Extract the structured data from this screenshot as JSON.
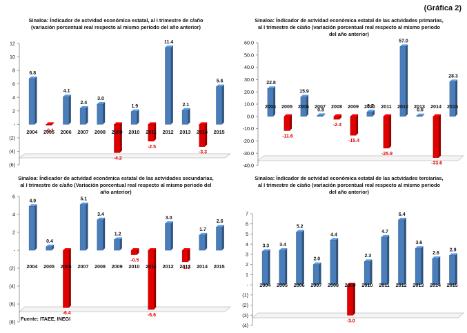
{
  "page_label": "(Gráfica 2)",
  "source": "Fuente: ITAEE,  INEGI",
  "colors": {
    "positive": "#4a7ebb",
    "negative": "#e00000",
    "axis": "#808080",
    "floor": "#bfbfbf"
  },
  "chart_data": [
    {
      "type": "bar",
      "title": [
        "Sinaloa: Índicador de actvidad  económica estatal, al I trimestre de c/año",
        "(variación  porcentual  real respecto al mismo periodo del año anterior)"
      ],
      "categories": [
        "2004",
        "2005",
        "2006",
        "2007",
        "2008",
        "2009",
        "2010",
        "2011",
        "2012",
        "2013",
        "2014",
        "2015"
      ],
      "values": [
        6.8,
        -0.1,
        4.1,
        2.4,
        3.0,
        -4.2,
        1.9,
        -2.5,
        11.4,
        2.1,
        -3.3,
        5.6
      ],
      "value_labels": [
        "6.8",
        "-0.1",
        "4.1",
        "2.4",
        "3.0",
        "-4.2",
        "1.9",
        "-2.5",
        "11.4",
        "2.1",
        "-3.3",
        "5.6"
      ],
      "ylim": [
        -6,
        12
      ],
      "y_ticks": [
        12,
        10,
        8,
        6,
        4,
        2,
        0,
        -2,
        -4,
        -6
      ],
      "y_tick_labels": [
        "12",
        "10",
        "8",
        "6",
        "4",
        "2",
        "-",
        "(2)",
        "(4)",
        "(6)"
      ],
      "xlabel": "",
      "ylabel": "",
      "grid": false
    },
    {
      "type": "bar",
      "title": [
        "Sinaloa: Índicador de actvidad  económica estatal de las actvidades primarias,",
        "al I trimestre de c/año (variación  porcentual  real respecto al mismo periodo",
        "del año anterior)"
      ],
      "categories": [
        "2004",
        "2005",
        "2006",
        "2007",
        "2008",
        "2009",
        "2010",
        "2011",
        "2012",
        "2013",
        "2014",
        "2015"
      ],
      "values": [
        22.8,
        -11.6,
        15.9,
        0.8,
        -2.4,
        -15.4,
        3.7,
        -25.9,
        57.0,
        0.6,
        -33.6,
        28.3
      ],
      "value_labels": [
        "22.8",
        "-11.6",
        "15.9",
        "0.8",
        "-2.4",
        "-15.4",
        "3.7",
        "-25.9",
        "57.0",
        "0.6",
        "-33.6",
        "28.3"
      ],
      "ylim": [
        -40,
        60
      ],
      "y_ticks": [
        60,
        50,
        40,
        30,
        20,
        10,
        0,
        -10,
        -20,
        -30,
        -40
      ],
      "y_tick_labels": [
        "60.0",
        "50.0",
        "40.0",
        "30.0",
        "20.0",
        "10.0",
        "0.0",
        "-10.0",
        "-20.0",
        "-30.0",
        "-40.0"
      ],
      "xlabel": "",
      "ylabel": "",
      "grid": false
    },
    {
      "type": "bar",
      "title": [
        "Sinaloa: Índicador de actvidad  económica estatal de las actvidades secundarias,",
        "al I trimestre de c/año (Variación  porcentual  real respecto al mismo periodo del",
        "año anterior)"
      ],
      "categories": [
        "2004",
        "2005",
        "2006",
        "2007",
        "2008",
        "2009",
        "2010",
        "2011",
        "2012",
        "2013",
        "2014",
        "2015"
      ],
      "values": [
        4.9,
        0.4,
        -6.4,
        5.1,
        3.4,
        1.2,
        -0.5,
        -6.6,
        3.0,
        -1.3,
        1.7,
        2.6
      ],
      "value_labels": [
        "4.9",
        "0.4",
        "-6.4",
        "5.1",
        "3.4",
        "1.2",
        "-0.5",
        "-6.6",
        "3.0",
        "-1.3",
        "1.7",
        "2.6"
      ],
      "ylim": [
        -8,
        6
      ],
      "y_ticks": [
        6,
        4,
        2,
        0,
        -2,
        -4,
        -6,
        -8
      ],
      "y_tick_labels": [
        "6",
        "4",
        "2",
        "-",
        "(2)",
        "(4)",
        "(6)",
        "(8)"
      ],
      "xlabel": "",
      "ylabel": "",
      "grid": false
    },
    {
      "type": "bar",
      "title": [
        "Sinaloa: Índicador de actvidad  económica estatal de las actvidades terciarias,",
        "al I trimestre de c/año (variación  porcentual  real respecto al mismo periodo",
        "del año anterior)"
      ],
      "categories": [
        "2004",
        "2005",
        "2006",
        "2007",
        "2008",
        "2009",
        "2010",
        "2011",
        "2012",
        "2013",
        "2014",
        "2015"
      ],
      "values": [
        3.3,
        3.4,
        5.2,
        2.0,
        4.4,
        -3.0,
        2.3,
        4.7,
        6.4,
        3.6,
        2.6,
        2.9
      ],
      "value_labels": [
        "3.3",
        "3.4",
        "5.2",
        "2.0",
        "4.4",
        "-3.0",
        "2.3",
        "4.7",
        "6.4",
        "3.6",
        "2.6",
        "2.9"
      ],
      "ylim": [
        -4,
        7
      ],
      "y_ticks": [
        7,
        6,
        5,
        4,
        3,
        2,
        1,
        0,
        -1,
        -2,
        -3,
        -4
      ],
      "y_tick_labels": [
        "7",
        "6",
        "5",
        "4",
        "3",
        "2",
        "1",
        "-",
        "(1)",
        "(2)",
        "(3)",
        "(4)"
      ],
      "xlabel": "",
      "ylabel": "",
      "grid": false
    }
  ]
}
